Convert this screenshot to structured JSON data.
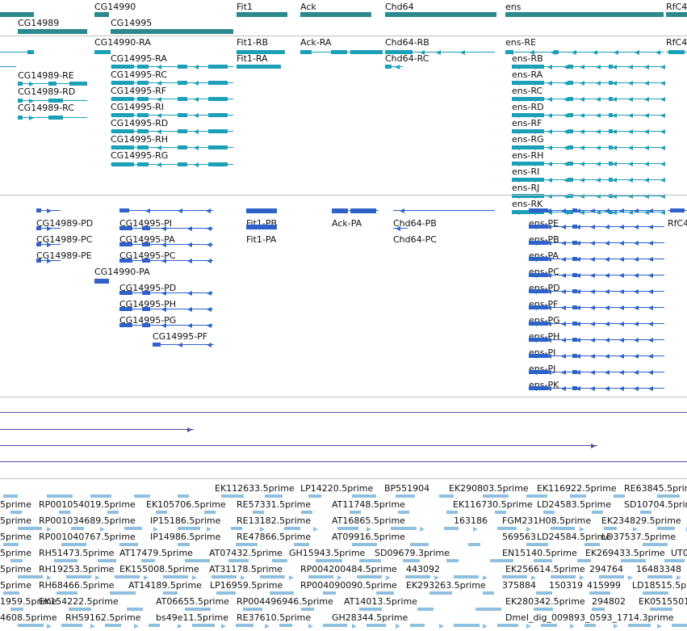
{
  "colors": {
    "gene": "#2a8a8e",
    "transcript_a": "#1ba0b8",
    "transcript_b": "#2f62c8",
    "long": "#5a4aa0",
    "est": "#8fc0df",
    "separator": "#bfbfbf"
  },
  "genes": [
    "CG14989",
    "CG14990",
    "CG14995",
    "Fit1",
    "Ack",
    "Chd64",
    "ens",
    "RfC4"
  ],
  "track1": [
    "CG14990-RA",
    "Fit1-RB",
    "Ack-RA",
    "Chd64-RB",
    "ens-RE",
    "RfC4",
    "CG14995-RA",
    "Fit1-RA",
    "Chd64-RC",
    "ens-RB",
    "CG14989-RE",
    "CG14995-RC",
    "ens-RA",
    "CG14989-RD",
    "CG14995-RF",
    "ens-RC",
    "CG14989-RC",
    "CG14995-RI",
    "ens-RD",
    "CG14995-RD",
    "ens-RF",
    "CG14995-RH",
    "ens-RG",
    "CG14995-RG",
    "ens-RH",
    "ens-RI",
    "ens-RJ",
    "ens-RK"
  ],
  "track2": [
    "CG14989-PD",
    "CG14995-PI",
    "Fit1-PB",
    "Ack-PA",
    "Chd64-PB",
    "ens-PE",
    "RfC4",
    "CG14989-PC",
    "CG14995-PA",
    "Fit1-PA",
    "Chd64-PC",
    "ens-PB",
    "CG14989-PE",
    "CG14995-PC",
    "ens-PA",
    "CG14990-PA",
    "ens-PC",
    "CG14995-PD",
    "ens-PD",
    "CG14995-PH",
    "ens-PF",
    "CG14995-PG",
    "ens-PG",
    "CG14995-PF",
    "ens-PH",
    "ens-PI",
    "ens-PJ",
    "ens-PK"
  ],
  "est": [
    "EK112633.5prime",
    "LP14220.5prime",
    "BP551904",
    "EK290803.5prime",
    "EK116922.5prime",
    "RE63845.5prime",
    "5prime",
    "RP001054019.5prime",
    "EK105706.5prime",
    "RE57331.5prime",
    "AT11748.5prime",
    "EK116730.5prime",
    "LD24583.5prime",
    "SD10704.5prime",
    "5prime",
    "RP001034689.5prime",
    "IP15186.5prime",
    "RE13182.5prime",
    "AT16865.5prime",
    "163186",
    "FGM231H08.5prime",
    "EK234829.5prime",
    "5prime",
    "RP001040767.5prime",
    "IP14986.5prime",
    "RE47866.5prime",
    "AT09916.5prime",
    "569563",
    "LD24584.5prime",
    "LD37537.5prime",
    "5prime",
    "RH51473.5prime",
    "AT17479.5prime",
    "AT07432.5prime",
    "GH15943.5prime",
    "SD09679.3prime",
    "EN15140.5prime",
    "EK269433.5prime",
    "UT0",
    "5prime",
    "RH19253.5prime",
    "EK155008.5prime",
    "AT31178.5prime",
    "RP004200484.5prime",
    "443092",
    "EK256614.5prime",
    "294764",
    "16483348",
    "5prime",
    "RH68466.5prime",
    "AT14189.5prime",
    "LP16959.5prime",
    "RP004090090.5prime",
    "EK293263.5prime",
    "375884",
    "150319",
    "415999",
    "LD18515.5pr",
    "1959.5prime",
    "EK154222.5prime",
    "AT06655.5prime",
    "RP004496946.5prime",
    "AT14013.5prime",
    "EK280342.5prime",
    "294802",
    "EK0515501",
    "4608.5prime",
    "RH59162.5prime",
    "bs49e11.5prime",
    "RE37610.5prime",
    "GH28344.5prime",
    "Dmel_dig_009893_0593_1714.3prime"
  ]
}
